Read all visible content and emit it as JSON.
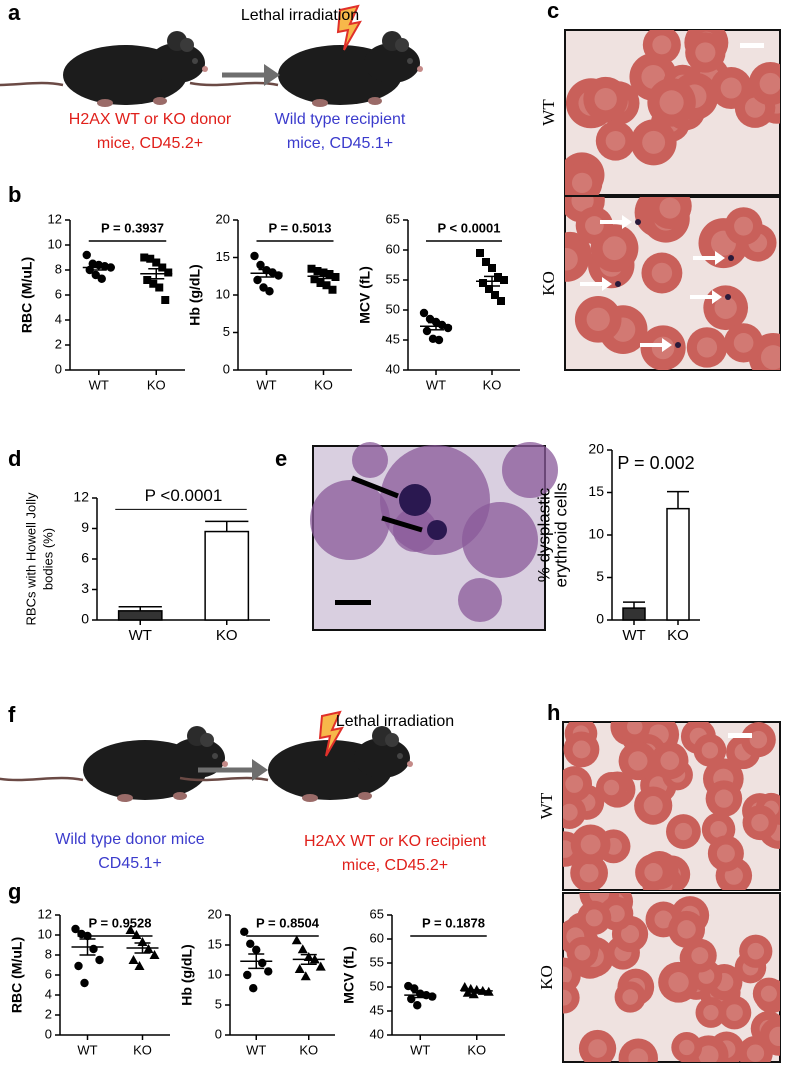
{
  "panel_labels": [
    "a",
    "b",
    "c",
    "d",
    "e",
    "f",
    "g",
    "h"
  ],
  "diagram_a": {
    "treatment": "Lethal irradiation",
    "donor": [
      "H2AX WT or KO donor",
      "mice, CD45.2+"
    ],
    "recipient": [
      "Wild type recipient",
      "mice, CD45.1+"
    ]
  },
  "diagram_f": {
    "treatment": "Lethal irradiation",
    "donor": [
      "Wild type donor mice",
      "CD45.1+"
    ],
    "recipient": [
      "H2AX WT or KO recipient",
      "mice, CD45.2+"
    ]
  },
  "micrographs_c": [
    "WT",
    "KO"
  ],
  "micrographs_h": [
    "WT",
    "KO"
  ],
  "chart_data": [
    {
      "type": "dot",
      "ylabel": "RBC (M/uL)",
      "ylim": [
        0,
        12
      ],
      "yticks": [
        0,
        2,
        4,
        6,
        8,
        10,
        12
      ],
      "categories": [
        "WT",
        "KO"
      ],
      "annotation": "P = 0.3937",
      "groups": [
        {
          "marker": "circle",
          "values": [
            9.2,
            8.5,
            8.4,
            8.3,
            8.2,
            8.0,
            7.6,
            7.3
          ],
          "mean": 8.2,
          "sem": 0.2
        },
        {
          "marker": "square",
          "values": [
            9.0,
            8.9,
            8.6,
            8.2,
            7.8,
            7.2,
            6.9,
            6.6,
            5.6
          ],
          "mean": 7.7,
          "sem": 0.4
        }
      ]
    },
    {
      "type": "dot",
      "ylabel": "Hb (g/dL)",
      "ylim": [
        0,
        20
      ],
      "yticks": [
        0,
        5,
        10,
        15,
        20
      ],
      "categories": [
        "WT",
        "KO"
      ],
      "annotation": "P = 0.5013",
      "groups": [
        {
          "marker": "circle",
          "values": [
            15.2,
            14.0,
            13.3,
            13.0,
            12.6,
            12.0,
            11.0,
            10.5
          ],
          "mean": 12.9,
          "sem": 0.5
        },
        {
          "marker": "square",
          "values": [
            13.5,
            13.2,
            13.0,
            12.8,
            12.4,
            12.1,
            11.6,
            11.3,
            10.7
          ],
          "mean": 12.5,
          "sem": 0.3
        }
      ]
    },
    {
      "type": "dot",
      "ylabel": "MCV (fL)",
      "ylim": [
        40,
        65
      ],
      "yticks": [
        40,
        45,
        50,
        55,
        60,
        65
      ],
      "categories": [
        "WT",
        "KO"
      ],
      "annotation": "P < 0.0001",
      "groups": [
        {
          "marker": "circle",
          "values": [
            49.5,
            48.5,
            48.0,
            47.5,
            47.0,
            46.5,
            45.2,
            45.0
          ],
          "mean": 47.3,
          "sem": 0.6
        },
        {
          "marker": "square",
          "values": [
            59.5,
            58.0,
            57.0,
            55.5,
            55.0,
            54.5,
            53.5,
            52.5,
            51.5
          ],
          "mean": 54.8,
          "sem": 0.8
        }
      ]
    },
    {
      "type": "bar",
      "ylabel": [
        "RBCs with Howell Jolly",
        "bodies (%)"
      ],
      "ylim": [
        0,
        12
      ],
      "yticks": [
        0,
        3,
        6,
        9,
        12
      ],
      "categories": [
        "WT",
        "KO"
      ],
      "annotation": "P <0.0001",
      "values": [
        0.9,
        8.7
      ],
      "errors": [
        0.4,
        1.0
      ],
      "colors": [
        "#333333",
        "#ffffff"
      ]
    },
    {
      "type": "bar",
      "ylabel": [
        "% dysplastic",
        "erythroid cells"
      ],
      "ylim": [
        0,
        20
      ],
      "yticks": [
        0,
        5,
        10,
        15,
        20
      ],
      "categories": [
        "WT",
        "KO"
      ],
      "annotation": "P = 0.002",
      "values": [
        1.4,
        13.1
      ],
      "errors": [
        0.7,
        2.0
      ],
      "colors": [
        "#333333",
        "#ffffff"
      ]
    },
    {
      "type": "dot",
      "ylabel": "RBC (M/uL)",
      "ylim": [
        0,
        12
      ],
      "yticks": [
        0,
        2,
        4,
        6,
        8,
        10,
        12
      ],
      "categories": [
        "WT",
        "KO"
      ],
      "annotation": "P = 0.9528",
      "groups": [
        {
          "marker": "circle",
          "values": [
            10.6,
            10.1,
            9.9,
            8.6,
            7.5,
            6.9,
            5.2
          ],
          "mean": 8.8,
          "sem": 0.8
        },
        {
          "marker": "triangle",
          "values": [
            10.5,
            10.0,
            9.3,
            8.6,
            8.0,
            7.5,
            6.9
          ],
          "mean": 8.7,
          "sem": 0.5
        }
      ]
    },
    {
      "type": "dot",
      "ylabel": "Hb (g/dL)",
      "ylim": [
        0,
        20
      ],
      "yticks": [
        0,
        5,
        10,
        15,
        20
      ],
      "categories": [
        "WT",
        "KO"
      ],
      "annotation": "P = 0.8504",
      "groups": [
        {
          "marker": "circle",
          "values": [
            17.2,
            15.2,
            14.2,
            12.0,
            10.6,
            10.0,
            7.8
          ],
          "mean": 12.3,
          "sem": 1.2
        },
        {
          "marker": "triangle",
          "values": [
            15.8,
            14.3,
            13.0,
            12.6,
            11.4,
            11.0,
            9.8
          ],
          "mean": 12.6,
          "sem": 0.8
        }
      ]
    },
    {
      "type": "dot",
      "ylabel": "MCV (fL)",
      "ylim": [
        40,
        65
      ],
      "yticks": [
        40,
        45,
        50,
        55,
        60,
        65
      ],
      "categories": [
        "WT",
        "KO"
      ],
      "annotation": "P = 0.1878",
      "groups": [
        {
          "marker": "circle",
          "values": [
            50.2,
            49.7,
            48.6,
            48.3,
            48.0,
            47.5,
            46.2
          ],
          "mean": 48.3,
          "sem": 0.5
        },
        {
          "marker": "triangle",
          "values": [
            50.0,
            49.6,
            49.4,
            49.2,
            49.0,
            48.8,
            48.5
          ],
          "mean": 49.2,
          "sem": 0.2
        }
      ]
    }
  ]
}
